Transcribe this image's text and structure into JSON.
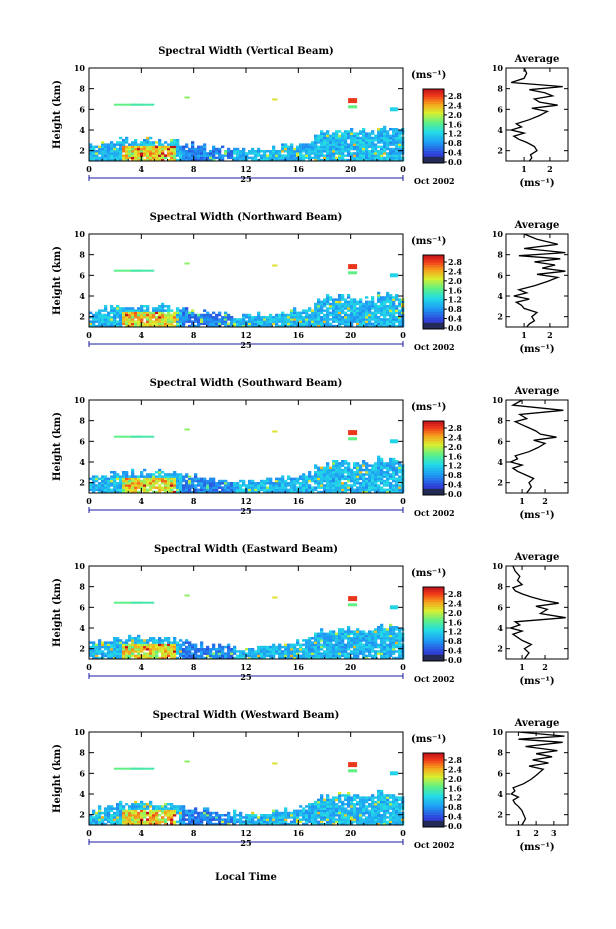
{
  "chart_data": {
    "type": "heatmap",
    "xlabel": "Local Time",
    "x_ticks": [
      "0",
      "4",
      "8",
      "12",
      "16",
      "20",
      "0"
    ],
    "xlim": [
      0,
      24
    ],
    "date_day": "25",
    "date_month": "Oct 2002",
    "ylabel": "Height (km)",
    "y_ticks": [
      "2",
      "4",
      "6",
      "8",
      "10"
    ],
    "ylim": [
      1,
      10
    ],
    "colorbar_unit": "(ms⁻¹)",
    "colorbar_ticks": [
      "0.0",
      "0.4",
      "0.8",
      "1.2",
      "1.6",
      "2.0",
      "2.4",
      "2.8"
    ],
    "colorbar_range": [
      0,
      2.8
    ],
    "average_title": "Average",
    "average_unit": "(ms⁻¹)",
    "panels": [
      {
        "title": "Spectral Width (Vertical Beam)",
        "average_ticks": [
          "1",
          "2"
        ],
        "average_xlim": [
          0.3,
          2.7
        ],
        "average_profile": {
          "height_km": [
            1.0,
            1.3,
            1.6,
            2.0,
            2.4,
            2.8,
            3.1,
            3.4,
            3.7,
            4.0,
            4.3,
            4.6,
            5.0,
            5.4,
            5.8,
            6.1,
            6.4,
            6.7,
            7.0,
            7.3,
            7.6,
            7.9,
            8.2,
            8.6,
            9.0,
            9.5,
            10.0
          ],
          "width": [
            1.2,
            1.3,
            1.25,
            1.5,
            1.4,
            1.1,
            0.8,
            0.6,
            1.0,
            0.5,
            0.9,
            0.7,
            1.2,
            1.6,
            1.9,
            1.3,
            2.3,
            1.6,
            1.4,
            2.1,
            1.8,
            1.2,
            2.5,
            0.5,
            1.0,
            1.1,
            1.0
          ]
        }
      },
      {
        "title": "Spectral Width (Northward Beam)",
        "average_ticks": [
          "1",
          "2"
        ],
        "average_xlim": [
          0.3,
          2.7
        ],
        "average_profile": {
          "height_km": [
            1.0,
            1.3,
            1.6,
            2.0,
            2.4,
            2.8,
            3.1,
            3.4,
            3.7,
            4.0,
            4.3,
            4.6,
            5.0,
            5.4,
            5.8,
            6.1,
            6.4,
            6.7,
            7.0,
            7.3,
            7.6,
            7.9,
            8.2,
            8.6,
            9.0,
            9.5,
            10.0
          ],
          "width": [
            1.1,
            1.2,
            1.4,
            1.3,
            1.5,
            1.0,
            0.9,
            0.7,
            1.2,
            0.6,
            1.1,
            0.8,
            1.4,
            1.9,
            2.3,
            1.5,
            2.6,
            1.7,
            2.2,
            1.4,
            2.4,
            0.8,
            2.6,
            1.0,
            2.3,
            1.5,
            1.0
          ]
        }
      },
      {
        "title": "Spectral Width (Southward Beam)",
        "average_ticks": [
          "1",
          "2"
        ],
        "average_xlim": [
          0.3,
          3.0
        ],
        "average_profile": {
          "height_km": [
            1.0,
            1.3,
            1.6,
            2.0,
            2.4,
            2.8,
            3.1,
            3.4,
            3.7,
            4.0,
            4.3,
            4.6,
            5.0,
            5.4,
            5.8,
            6.1,
            6.4,
            6.7,
            7.0,
            7.3,
            7.6,
            7.9,
            8.2,
            8.6,
            9.0,
            9.5,
            10.0
          ],
          "width": [
            1.2,
            1.3,
            1.4,
            1.3,
            1.5,
            1.1,
            0.8,
            0.6,
            1.0,
            0.5,
            0.8,
            0.7,
            1.3,
            1.7,
            2.0,
            1.5,
            2.5,
            1.8,
            1.6,
            1.3,
            1.0,
            0.7,
            1.2,
            0.9,
            2.8,
            0.6,
            1.0
          ]
        }
      },
      {
        "title": "Spectral Width (Eastward Beam)",
        "average_ticks": [
          "1",
          "2"
        ],
        "average_xlim": [
          0.3,
          3.0
        ],
        "average_profile": {
          "height_km": [
            1.0,
            1.3,
            1.6,
            2.0,
            2.4,
            2.8,
            3.1,
            3.4,
            3.7,
            4.0,
            4.3,
            4.6,
            5.0,
            5.4,
            5.8,
            6.1,
            6.4,
            6.7,
            7.0,
            7.3,
            7.6,
            7.9,
            8.2,
            8.6,
            9.0,
            9.5,
            10.0
          ],
          "width": [
            1.1,
            1.2,
            1.3,
            1.1,
            1.4,
            1.0,
            0.8,
            0.6,
            1.0,
            0.5,
            0.9,
            0.7,
            2.9,
            1.8,
            2.1,
            1.6,
            2.6,
            1.9,
            1.4,
            1.0,
            0.7,
            0.6,
            1.0,
            0.8,
            0.9,
            0.7,
            0.6
          ]
        }
      },
      {
        "title": "Spectral Width (Westward Beam)",
        "average_ticks": [
          "1",
          "2",
          "3"
        ],
        "average_xlim": [
          0.3,
          3.8
        ],
        "average_profile": {
          "height_km": [
            1.0,
            1.3,
            1.6,
            2.0,
            2.4,
            2.8,
            3.1,
            3.4,
            3.7,
            4.0,
            4.3,
            4.6,
            5.0,
            5.4,
            5.8,
            6.1,
            6.4,
            6.7,
            7.0,
            7.3,
            7.6,
            7.9,
            8.2,
            8.6,
            9.0,
            9.3,
            9.6,
            10.0
          ],
          "width": [
            1.2,
            1.3,
            1.4,
            1.3,
            1.2,
            1.0,
            0.8,
            0.7,
            1.0,
            0.6,
            0.8,
            0.7,
            1.3,
            1.7,
            2.0,
            2.2,
            2.4,
            1.6,
            2.7,
            1.8,
            2.9,
            2.0,
            3.2,
            1.4,
            3.5,
            1.0,
            3.6,
            1.0
          ]
        }
      }
    ]
  }
}
